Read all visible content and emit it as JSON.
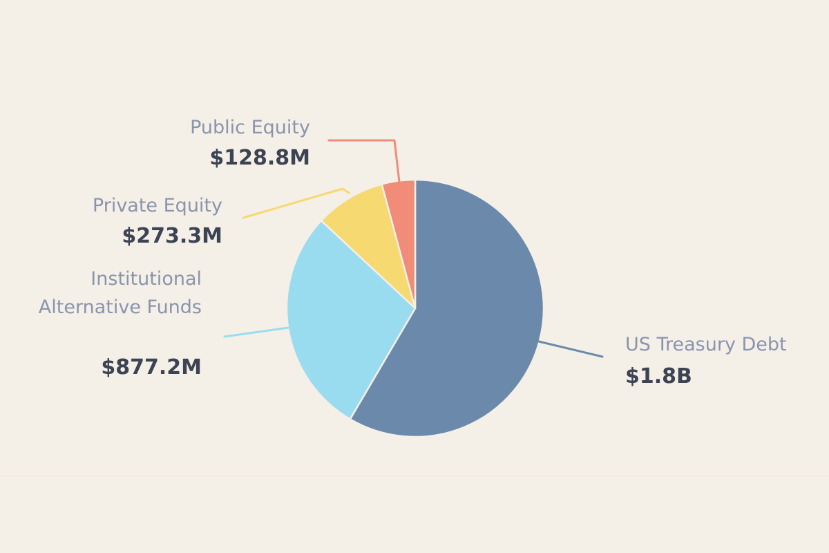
{
  "chart_data": {
    "type": "pie",
    "title": "",
    "unit": "USD",
    "slices": [
      {
        "name": "US Treasury Debt",
        "label_lines": [
          "US Treasury Debt"
        ],
        "value": 1800000000,
        "value_label": "$1.8B",
        "color": "#6b8aab"
      },
      {
        "name": "Institutional Alternative Funds",
        "label_lines": [
          "Institutional",
          "Alternative Funds"
        ],
        "value": 877200000,
        "value_label": "$877.2M",
        "color": "#99dcf0"
      },
      {
        "name": "Private Equity",
        "label_lines": [
          "Private Equity"
        ],
        "value": 273300000,
        "value_label": "$273.3M",
        "color": "#f7d972"
      },
      {
        "name": "Public Equity",
        "label_lines": [
          "Public Equity"
        ],
        "value": 128800000,
        "value_label": "$128.8M",
        "color": "#f08c78"
      }
    ],
    "start_angle_deg": 0,
    "direction": "clockwise",
    "labels": "outside-with-leader-lines"
  }
}
